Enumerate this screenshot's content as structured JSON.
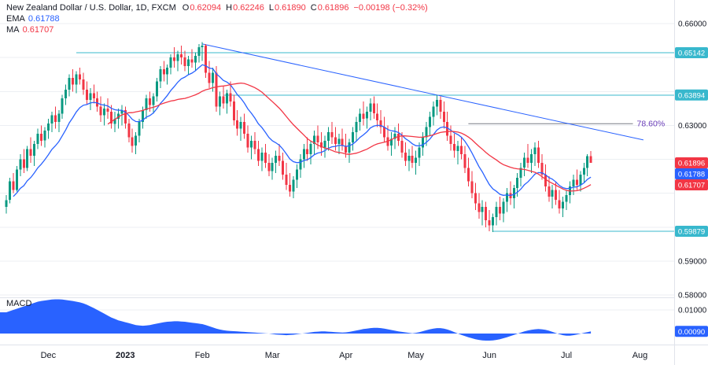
{
  "header": {
    "title": "New Zealand Dollar / U.S. Dollar, 1D, FXCM",
    "o_label": "O",
    "o": "0.62094",
    "h_label": "H",
    "h": "0.62246",
    "l_label": "L",
    "l": "0.61890",
    "c_label": "C",
    "c": "0.61896",
    "change": "−0.00198 (−0.32%)",
    "ema_label": "EMA",
    "ema_value": "0.61788",
    "ma_label": "MA",
    "ma_value": "0.61707",
    "macd_label": "MACD"
  },
  "colors": {
    "up": "#089981",
    "down": "#f23645",
    "ema": "#2962ff",
    "ma": "#f23645",
    "level": "#38b8cd",
    "level_label_bg": "#38b8cd",
    "trend": "#2962ff",
    "fib_line": "#787b86",
    "fib_label": "#673ab7",
    "macd_fill": "#2962ff",
    "grid": "#eceff3",
    "axis_border": "#e0e3eb",
    "axis_text": "#131722",
    "last_price_bg": "#f23645",
    "ema_label_bg": "#2962ff",
    "ma_label_bg": "#f23645"
  },
  "axis": {
    "price_ticks": [
      {
        "label": "0.66000",
        "price": 0.66
      },
      {
        "label": "0.63000",
        "price": 0.63
      },
      {
        "label": "0.59000",
        "price": 0.59
      },
      {
        "label": "0.58000",
        "price": 0.58
      }
    ],
    "macd_ticks": [
      {
        "label": "0.01000",
        "value": 0.01
      }
    ],
    "price_labels": [
      {
        "text": "0.65142",
        "price": 0.65142,
        "bg": "#38b8cd"
      },
      {
        "text": "0.63894",
        "price": 0.63894,
        "bg": "#38b8cd"
      },
      {
        "text": "0.61896",
        "price": 0.61896,
        "bg": "#f23645"
      },
      {
        "text": "0.61788",
        "price": 0.61788,
        "bg": "#2962ff"
      },
      {
        "text": "0.61707",
        "price": 0.61707,
        "bg": "#f23645"
      },
      {
        "text": "0.59879",
        "price": 0.59879,
        "bg": "#38b8cd"
      }
    ],
    "macd_labels": [
      {
        "text": "0.00090",
        "value": 0.0009,
        "bg": "#2962ff"
      }
    ],
    "time_ticks": [
      {
        "label": "Dec",
        "i": 12,
        "bold": false
      },
      {
        "label": "2023",
        "i": 34,
        "bold": true
      },
      {
        "label": "Feb",
        "i": 56,
        "bold": false
      },
      {
        "label": "Mar",
        "i": 76,
        "bold": false
      },
      {
        "label": "Apr",
        "i": 97,
        "bold": false
      },
      {
        "label": "May",
        "i": 117,
        "bold": false
      },
      {
        "label": "Jun",
        "i": 138,
        "bold": false
      },
      {
        "label": "Jul",
        "i": 160,
        "bold": false
      },
      {
        "label": "Aug",
        "i": 181,
        "bold": false
      }
    ]
  },
  "chart_data": {
    "type": "candlestick",
    "title": "New Zealand Dollar / U.S. Dollar",
    "timeframe": "1D",
    "exchange": "FXCM",
    "price_range": [
      0.58,
      0.66
    ],
    "macd_range": [
      -0.003,
      0.0145
    ],
    "last": {
      "open": 0.62094,
      "high": 0.62246,
      "low": 0.6189,
      "close": 0.61896,
      "change": -0.00198,
      "change_pct": -0.32
    },
    "indicators": {
      "ema_value": 0.61788,
      "ma_value": 0.61707,
      "macd_value": 0.0009,
      "ema_period": 14,
      "ma_period": 30
    },
    "levels": [
      {
        "price": 0.65142,
        "from_i": 20
      },
      {
        "price": 0.63894,
        "from_i": 62
      },
      {
        "price": 0.59879,
        "from_i": 139
      }
    ],
    "fib": {
      "label": "78.60%",
      "price": 0.6305,
      "from_i": 132,
      "to_i": 179
    },
    "trendline": {
      "from": {
        "i": 56,
        "price": 0.654
      },
      "to": {
        "i": 182,
        "price": 0.6257
      }
    },
    "candles": [
      [
        0.606,
        0.6095,
        0.604,
        0.608
      ],
      [
        0.608,
        0.6145,
        0.607,
        0.6135
      ],
      [
        0.6135,
        0.616,
        0.61,
        0.611
      ],
      [
        0.611,
        0.618,
        0.6105,
        0.617
      ],
      [
        0.617,
        0.6215,
        0.615,
        0.62
      ],
      [
        0.62,
        0.623,
        0.616,
        0.6175
      ],
      [
        0.6175,
        0.624,
        0.6165,
        0.623
      ],
      [
        0.623,
        0.6265,
        0.619,
        0.621
      ],
      [
        0.621,
        0.6255,
        0.618,
        0.6245
      ],
      [
        0.6245,
        0.629,
        0.623,
        0.6275
      ],
      [
        0.6275,
        0.63,
        0.624,
        0.6255
      ],
      [
        0.6255,
        0.6295,
        0.6235,
        0.6285
      ],
      [
        0.6285,
        0.632,
        0.626,
        0.6305
      ],
      [
        0.6305,
        0.634,
        0.628,
        0.633
      ],
      [
        0.633,
        0.6355,
        0.629,
        0.631
      ],
      [
        0.631,
        0.6345,
        0.628,
        0.6335
      ],
      [
        0.6335,
        0.639,
        0.632,
        0.638
      ],
      [
        0.638,
        0.642,
        0.636,
        0.6405
      ],
      [
        0.6405,
        0.645,
        0.6385,
        0.644
      ],
      [
        0.644,
        0.6465,
        0.64,
        0.642
      ],
      [
        0.642,
        0.646,
        0.6395,
        0.645
      ],
      [
        0.645,
        0.647,
        0.642,
        0.6435
      ],
      [
        0.6435,
        0.6455,
        0.639,
        0.6405
      ],
      [
        0.6405,
        0.643,
        0.636,
        0.6375
      ],
      [
        0.6375,
        0.641,
        0.6345,
        0.6395
      ],
      [
        0.6395,
        0.642,
        0.6365,
        0.638
      ],
      [
        0.638,
        0.64,
        0.634,
        0.6355
      ],
      [
        0.6355,
        0.6385,
        0.631,
        0.633
      ],
      [
        0.633,
        0.6365,
        0.63,
        0.635
      ],
      [
        0.635,
        0.638,
        0.632,
        0.634
      ],
      [
        0.634,
        0.636,
        0.629,
        0.6305
      ],
      [
        0.6305,
        0.634,
        0.628,
        0.632
      ],
      [
        0.632,
        0.635,
        0.629,
        0.6335
      ],
      [
        0.6335,
        0.636,
        0.63,
        0.6345
      ],
      [
        0.6345,
        0.6355,
        0.629,
        0.6305
      ],
      [
        0.6305,
        0.632,
        0.625,
        0.6265
      ],
      [
        0.6265,
        0.629,
        0.622,
        0.624
      ],
      [
        0.624,
        0.628,
        0.6215,
        0.627
      ],
      [
        0.627,
        0.632,
        0.625,
        0.631
      ],
      [
        0.631,
        0.6355,
        0.629,
        0.6345
      ],
      [
        0.6345,
        0.639,
        0.632,
        0.638
      ],
      [
        0.638,
        0.64,
        0.634,
        0.636
      ],
      [
        0.636,
        0.6395,
        0.6335,
        0.6385
      ],
      [
        0.6385,
        0.644,
        0.637,
        0.643
      ],
      [
        0.643,
        0.6475,
        0.641,
        0.6465
      ],
      [
        0.6465,
        0.649,
        0.643,
        0.645
      ],
      [
        0.645,
        0.648,
        0.642,
        0.647
      ],
      [
        0.647,
        0.651,
        0.645,
        0.65
      ],
      [
        0.65,
        0.653,
        0.647,
        0.649
      ],
      [
        0.649,
        0.652,
        0.646,
        0.651
      ],
      [
        0.651,
        0.6535,
        0.648,
        0.65
      ],
      [
        0.65,
        0.652,
        0.646,
        0.6475
      ],
      [
        0.6475,
        0.6505,
        0.645,
        0.6495
      ],
      [
        0.6495,
        0.6525,
        0.647,
        0.6485
      ],
      [
        0.6485,
        0.6515,
        0.646,
        0.6505
      ],
      [
        0.6505,
        0.654,
        0.6485,
        0.653
      ],
      [
        0.653,
        0.6545,
        0.649,
        0.6535
      ],
      [
        0.6535,
        0.654,
        0.644,
        0.6455
      ],
      [
        0.6455,
        0.649,
        0.641,
        0.6425
      ],
      [
        0.6425,
        0.647,
        0.64,
        0.6455
      ],
      [
        0.6455,
        0.6475,
        0.634,
        0.6355
      ],
      [
        0.6355,
        0.64,
        0.633,
        0.6385
      ],
      [
        0.6385,
        0.6415,
        0.635,
        0.6365
      ],
      [
        0.6365,
        0.6405,
        0.6335,
        0.6395
      ],
      [
        0.6395,
        0.643,
        0.6355,
        0.637
      ],
      [
        0.637,
        0.639,
        0.63,
        0.6315
      ],
      [
        0.6315,
        0.6345,
        0.627,
        0.629
      ],
      [
        0.629,
        0.6325,
        0.6255,
        0.631
      ],
      [
        0.631,
        0.6335,
        0.626,
        0.6275
      ],
      [
        0.6275,
        0.63,
        0.622,
        0.6235
      ],
      [
        0.6235,
        0.627,
        0.62,
        0.6255
      ],
      [
        0.6255,
        0.628,
        0.6215,
        0.623
      ],
      [
        0.623,
        0.6255,
        0.618,
        0.6195
      ],
      [
        0.6195,
        0.6235,
        0.6165,
        0.622
      ],
      [
        0.622,
        0.6245,
        0.6175,
        0.619
      ],
      [
        0.619,
        0.6215,
        0.615,
        0.6165
      ],
      [
        0.6165,
        0.6205,
        0.614,
        0.619
      ],
      [
        0.619,
        0.6225,
        0.616,
        0.621
      ],
      [
        0.621,
        0.6245,
        0.618,
        0.6195
      ],
      [
        0.6195,
        0.622,
        0.614,
        0.6155
      ],
      [
        0.6155,
        0.619,
        0.611,
        0.6125
      ],
      [
        0.6125,
        0.616,
        0.609,
        0.6105
      ],
      [
        0.6105,
        0.615,
        0.6085,
        0.614
      ],
      [
        0.614,
        0.6185,
        0.6115,
        0.617
      ],
      [
        0.617,
        0.6215,
        0.6145,
        0.62
      ],
      [
        0.62,
        0.6245,
        0.6175,
        0.623
      ],
      [
        0.623,
        0.6265,
        0.6195,
        0.6215
      ],
      [
        0.6215,
        0.6255,
        0.6185,
        0.6245
      ],
      [
        0.6245,
        0.6285,
        0.6215,
        0.627
      ],
      [
        0.627,
        0.63,
        0.623,
        0.625
      ],
      [
        0.625,
        0.628,
        0.621,
        0.6235
      ],
      [
        0.6235,
        0.627,
        0.6205,
        0.6255
      ],
      [
        0.6255,
        0.6295,
        0.6225,
        0.628
      ],
      [
        0.628,
        0.631,
        0.6245,
        0.6265
      ],
      [
        0.6265,
        0.6295,
        0.6225,
        0.6245
      ],
      [
        0.6245,
        0.6275,
        0.6215,
        0.626
      ],
      [
        0.626,
        0.629,
        0.6225,
        0.624
      ],
      [
        0.624,
        0.6275,
        0.6205,
        0.622
      ],
      [
        0.622,
        0.626,
        0.619,
        0.625
      ],
      [
        0.625,
        0.6295,
        0.6225,
        0.628
      ],
      [
        0.628,
        0.6325,
        0.6255,
        0.631
      ],
      [
        0.631,
        0.635,
        0.6285,
        0.6335
      ],
      [
        0.6335,
        0.637,
        0.63,
        0.632
      ],
      [
        0.632,
        0.6355,
        0.629,
        0.634
      ],
      [
        0.634,
        0.638,
        0.6315,
        0.6365
      ],
      [
        0.6365,
        0.6385,
        0.632,
        0.6335
      ],
      [
        0.6335,
        0.6365,
        0.6295,
        0.6315
      ],
      [
        0.6315,
        0.6345,
        0.6275,
        0.6295
      ],
      [
        0.6295,
        0.6325,
        0.625,
        0.6265
      ],
      [
        0.6265,
        0.63,
        0.6225,
        0.624
      ],
      [
        0.624,
        0.628,
        0.621,
        0.626
      ],
      [
        0.626,
        0.6295,
        0.623,
        0.6275
      ],
      [
        0.6275,
        0.6305,
        0.624,
        0.6255
      ],
      [
        0.6255,
        0.628,
        0.6205,
        0.622
      ],
      [
        0.622,
        0.625,
        0.618,
        0.6195
      ],
      [
        0.6195,
        0.623,
        0.6165,
        0.621
      ],
      [
        0.621,
        0.624,
        0.6175,
        0.619
      ],
      [
        0.619,
        0.6225,
        0.6155,
        0.6205
      ],
      [
        0.6205,
        0.625,
        0.618,
        0.6235
      ],
      [
        0.6235,
        0.628,
        0.621,
        0.6265
      ],
      [
        0.6265,
        0.631,
        0.624,
        0.6295
      ],
      [
        0.6295,
        0.634,
        0.627,
        0.6325
      ],
      [
        0.6325,
        0.637,
        0.63,
        0.6355
      ],
      [
        0.6355,
        0.639,
        0.633,
        0.6375
      ],
      [
        0.6375,
        0.6385,
        0.632,
        0.634
      ],
      [
        0.634,
        0.637,
        0.629,
        0.631
      ],
      [
        0.631,
        0.634,
        0.6255,
        0.627
      ],
      [
        0.627,
        0.63,
        0.6225,
        0.6245
      ],
      [
        0.6245,
        0.6275,
        0.6205,
        0.6225
      ],
      [
        0.6225,
        0.6255,
        0.6185,
        0.624
      ],
      [
        0.624,
        0.6265,
        0.62,
        0.6215
      ],
      [
        0.6215,
        0.624,
        0.616,
        0.6175
      ],
      [
        0.6175,
        0.6205,
        0.612,
        0.6135
      ],
      [
        0.6135,
        0.6165,
        0.6085,
        0.61
      ],
      [
        0.61,
        0.613,
        0.605,
        0.607
      ],
      [
        0.607,
        0.61,
        0.6025,
        0.6045
      ],
      [
        0.6045,
        0.608,
        0.6005,
        0.606
      ],
      [
        0.606,
        0.6075,
        0.6,
        0.602
      ],
      [
        0.602,
        0.605,
        0.5988,
        0.6005
      ],
      [
        0.6005,
        0.604,
        0.5985,
        0.603
      ],
      [
        0.603,
        0.6075,
        0.6005,
        0.606
      ],
      [
        0.606,
        0.609,
        0.602,
        0.604
      ],
      [
        0.604,
        0.6085,
        0.6015,
        0.6075
      ],
      [
        0.6075,
        0.6115,
        0.6045,
        0.61
      ],
      [
        0.61,
        0.6135,
        0.6065,
        0.6085
      ],
      [
        0.6085,
        0.6125,
        0.6055,
        0.6115
      ],
      [
        0.6115,
        0.616,
        0.609,
        0.6145
      ],
      [
        0.6145,
        0.619,
        0.612,
        0.6175
      ],
      [
        0.6175,
        0.622,
        0.615,
        0.6205
      ],
      [
        0.6205,
        0.6245,
        0.6175,
        0.619
      ],
      [
        0.619,
        0.623,
        0.616,
        0.6215
      ],
      [
        0.6215,
        0.625,
        0.618,
        0.6235
      ],
      [
        0.6235,
        0.6255,
        0.6175,
        0.619
      ],
      [
        0.619,
        0.6215,
        0.614,
        0.6155
      ],
      [
        0.6155,
        0.6185,
        0.6105,
        0.612
      ],
      [
        0.612,
        0.615,
        0.6075,
        0.609
      ],
      [
        0.609,
        0.6125,
        0.6055,
        0.611
      ],
      [
        0.611,
        0.6135,
        0.6065,
        0.608
      ],
      [
        0.608,
        0.611,
        0.604,
        0.6055
      ],
      [
        0.6055,
        0.609,
        0.603,
        0.6075
      ],
      [
        0.6075,
        0.611,
        0.605,
        0.6095
      ],
      [
        0.6095,
        0.6135,
        0.607,
        0.612
      ],
      [
        0.612,
        0.6155,
        0.6095,
        0.614
      ],
      [
        0.614,
        0.617,
        0.611,
        0.6125
      ],
      [
        0.6125,
        0.6165,
        0.6105,
        0.6155
      ],
      [
        0.6155,
        0.619,
        0.613,
        0.6175
      ],
      [
        0.6175,
        0.6215,
        0.615,
        0.6209
      ],
      [
        0.62094,
        0.62246,
        0.6189,
        0.61896
      ]
    ],
    "macd": [
      0.009,
      0.0095,
      0.01,
      0.0105,
      0.011,
      0.0115,
      0.012,
      0.0125,
      0.013,
      0.0135,
      0.0138,
      0.014,
      0.0142,
      0.0144,
      0.0145,
      0.0145,
      0.0144,
      0.0142,
      0.014,
      0.0138,
      0.0135,
      0.0132,
      0.0128,
      0.0122,
      0.0115,
      0.0108,
      0.01,
      0.0092,
      0.0084,
      0.0076,
      0.0068,
      0.0062,
      0.0056,
      0.0052,
      0.0048,
      0.0044,
      0.004,
      0.0036,
      0.0034,
      0.0033,
      0.0034,
      0.0036,
      0.0039,
      0.0042,
      0.0045,
      0.0048,
      0.005,
      0.0051,
      0.0052,
      0.0052,
      0.0051,
      0.005,
      0.0048,
      0.0046,
      0.0044,
      0.0042,
      0.004,
      0.0036,
      0.0031,
      0.0026,
      0.0021,
      0.0017,
      0.0014,
      0.0012,
      0.0011,
      0.001,
      0.0009,
      0.0008,
      0.0007,
      0.0006,
      0.0005,
      0.0004,
      0.0003,
      0.0002,
      0.0001,
      0.0,
      -0.0002,
      -0.0004,
      -0.0005,
      -0.0006,
      -0.0007,
      -0.0006,
      -0.0005,
      -0.0003,
      -0.0001,
      0.0001,
      0.0003,
      0.0005,
      0.0007,
      0.0008,
      0.0009,
      0.0009,
      0.0008,
      0.0007,
      0.0006,
      0.0005,
      0.0004,
      0.0005,
      0.0007,
      0.001,
      0.0013,
      0.0016,
      0.0019,
      0.0021,
      0.0023,
      0.0024,
      0.0024,
      0.0023,
      0.0021,
      0.0018,
      0.0015,
      0.0012,
      0.0009,
      0.0007,
      0.0005,
      0.0003,
      0.0001,
      0.0003,
      0.0006,
      0.001,
      0.0014,
      0.0018,
      0.0021,
      0.0023,
      0.0023,
      0.0021,
      0.0017,
      0.0012,
      0.0006,
      0.0,
      -0.0006,
      -0.0011,
      -0.0016,
      -0.002,
      -0.0024,
      -0.0027,
      -0.0029,
      -0.003,
      -0.003,
      -0.0029,
      -0.0027,
      -0.0024,
      -0.002,
      -0.0016,
      -0.0011,
      -0.0006,
      -0.0001,
      0.0004,
      0.0009,
      0.0013,
      0.0016,
      0.0018,
      0.0019,
      0.0018,
      0.0016,
      0.0012,
      0.0007,
      0.0002,
      -0.0003,
      -0.0007,
      -0.0009,
      -0.0009,
      -0.0007,
      -0.0004,
      -0.0001,
      0.0003,
      0.0006,
      0.0009
    ]
  }
}
